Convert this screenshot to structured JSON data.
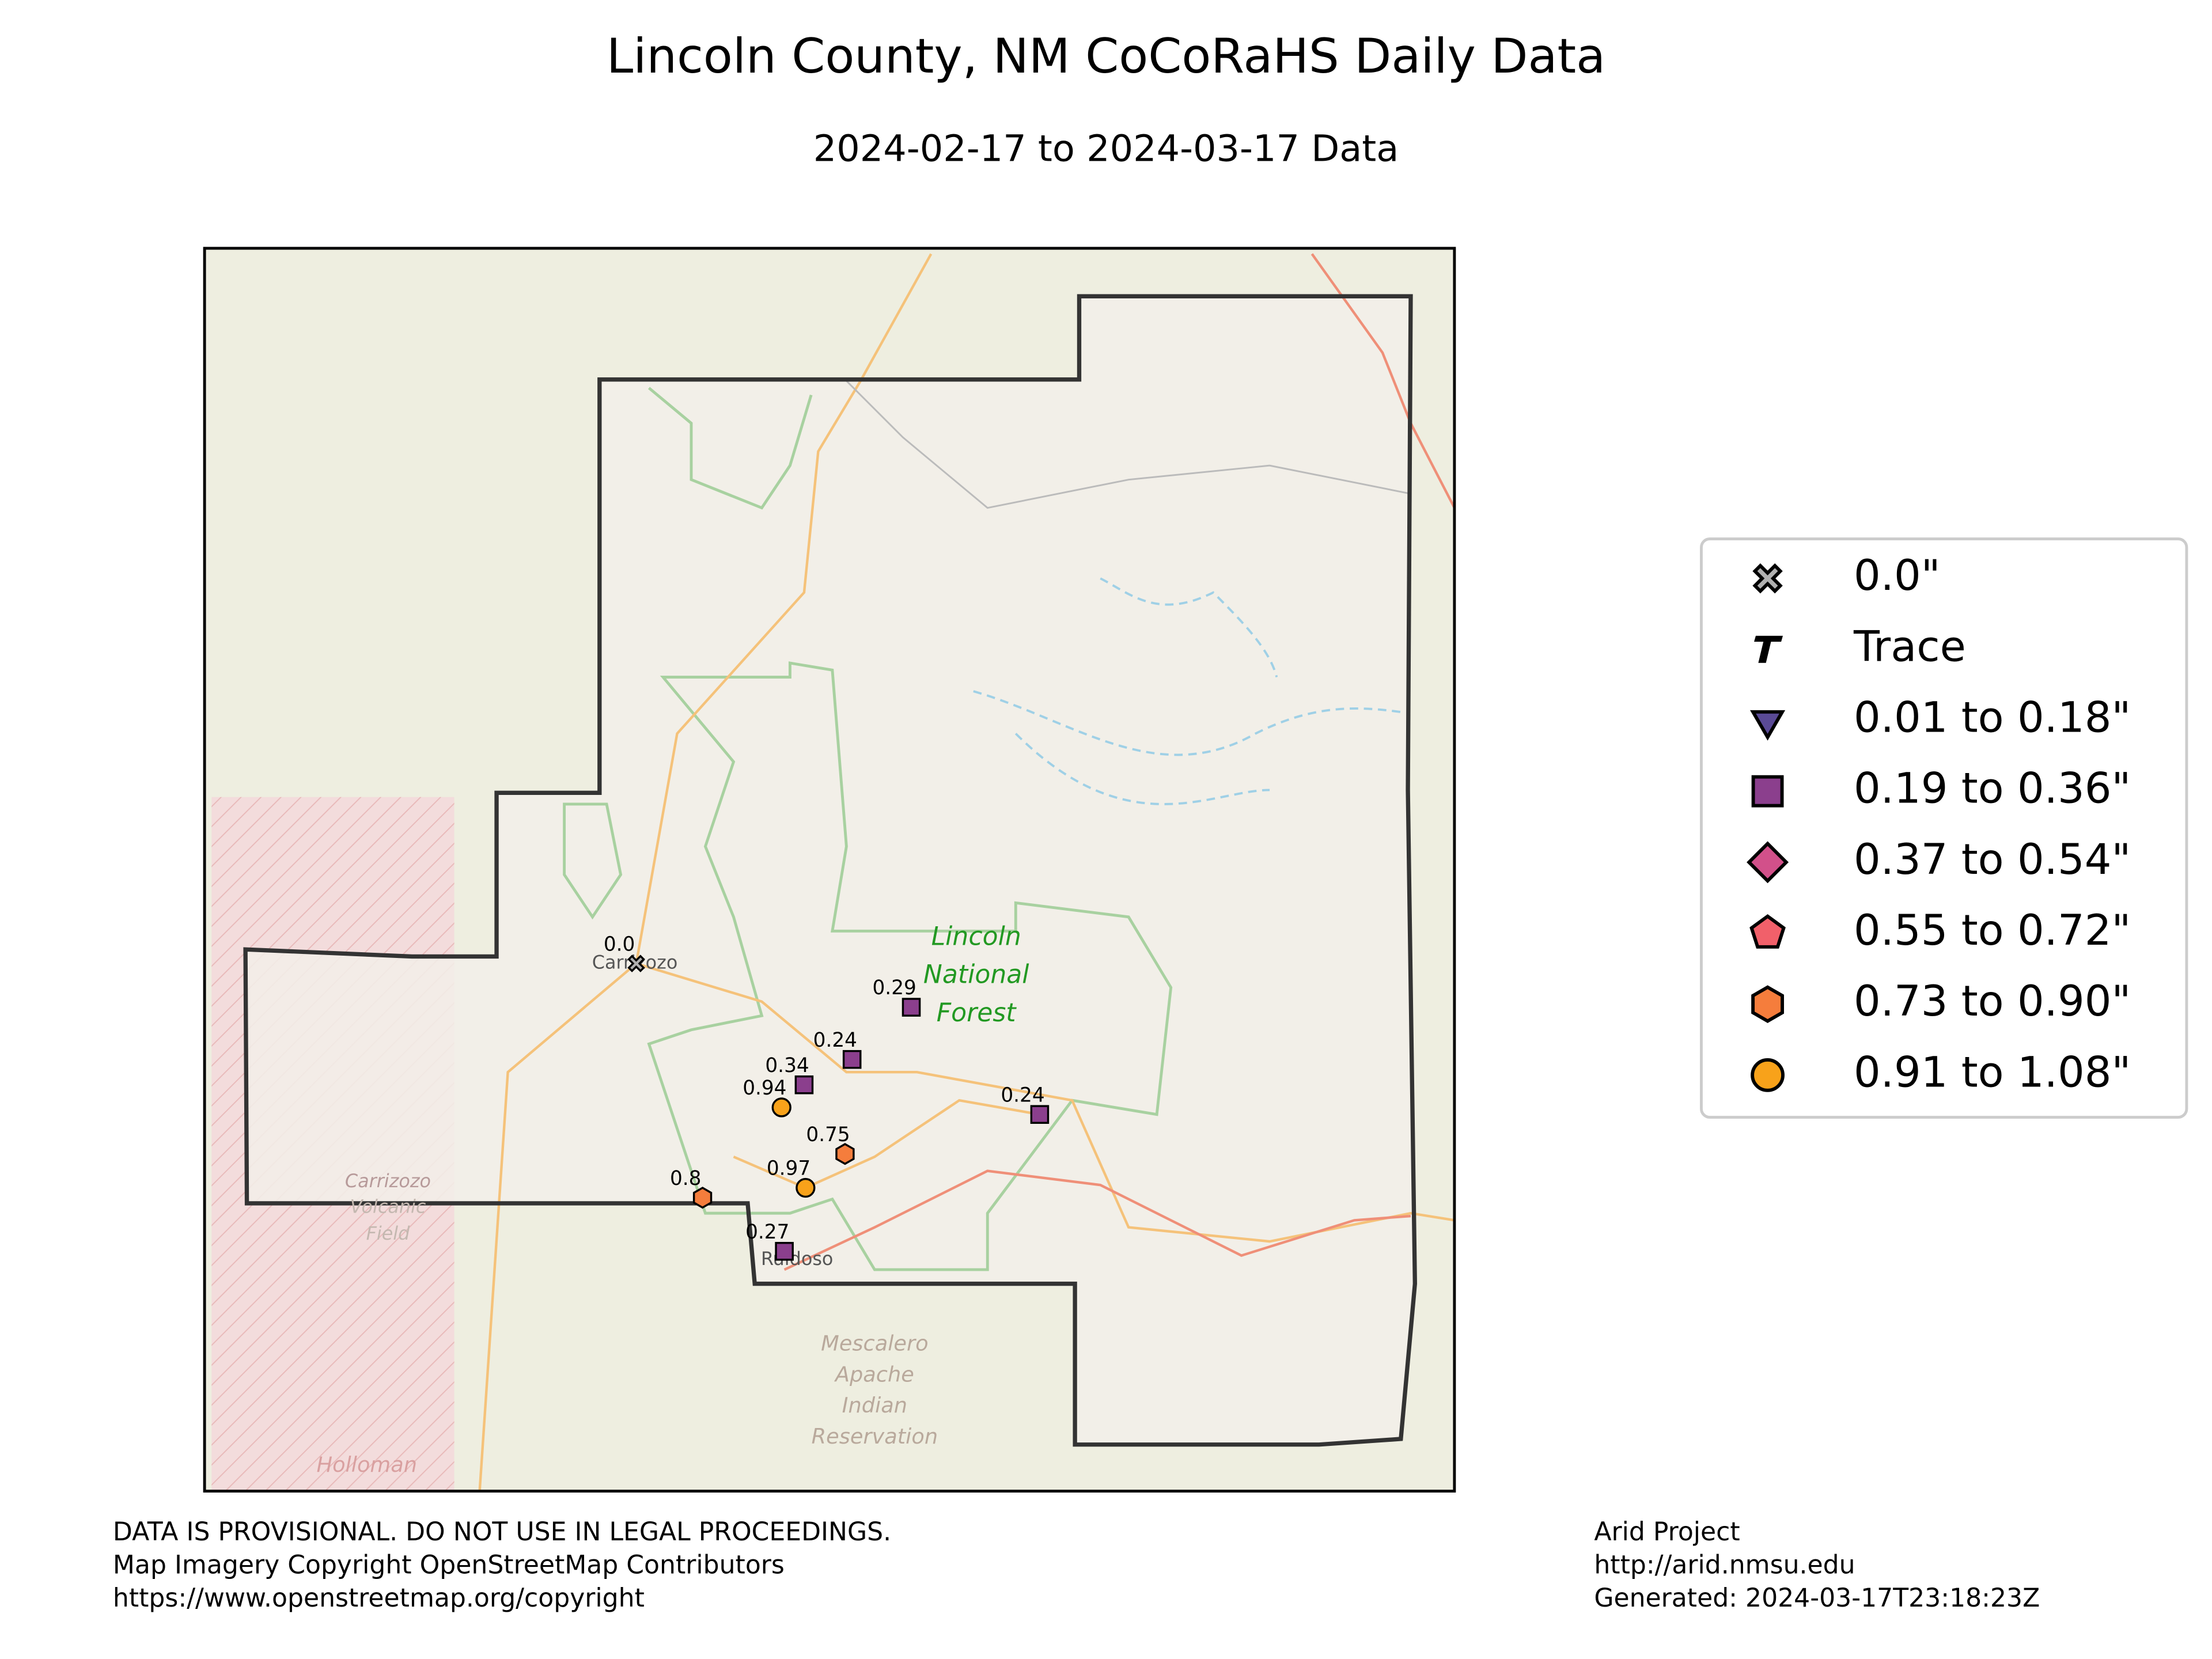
{
  "title": "Lincoln County, NM CoCoRaHS Daily Data",
  "subtitle": "2024-02-17 to 2024-03-17 Data",
  "map": {
    "labels": [
      "Carrizozo",
      "Ruidoso",
      "Lincoln",
      "National",
      "Forest",
      "Mescalero",
      "Apache",
      "Indian",
      "Reservation",
      "Carrizozo",
      "Volcanic",
      "Field",
      "Holloman"
    ]
  },
  "stations": {
    "values": [
      0.0,
      0.29,
      0.24,
      0.34,
      0.94,
      0.24,
      0.75,
      0.97,
      0.8,
      0.27
    ],
    "value_labels": [
      "0.0",
      "0.29",
      "0.24",
      "0.34",
      "0.94",
      "0.24",
      "0.75",
      "0.97",
      "0.8",
      "0.27"
    ]
  },
  "legend": [
    {
      "name": "0.0\"",
      "marker": "x",
      "color": "#b0b0b0",
      "min": 0,
      "max": 0
    },
    {
      "name": "Trace",
      "marker": "trace",
      "color": "#000000"
    },
    {
      "name": "0.01 to 0.18\"",
      "marker": "triangle",
      "color": "#5a4a96",
      "min": 0.01,
      "max": 0.18
    },
    {
      "name": "0.19 to 0.36\"",
      "marker": "square",
      "color": "#8b3f8d",
      "min": 0.19,
      "max": 0.36
    },
    {
      "name": "0.37 to 0.54\"",
      "marker": "diamond",
      "color": "#d2508a",
      "min": 0.37,
      "max": 0.54
    },
    {
      "name": "0.55 to 0.72\"",
      "marker": "pentagon",
      "color": "#f1606a",
      "min": 0.55,
      "max": 0.72
    },
    {
      "name": "0.73 to 0.90\"",
      "marker": "hexagon",
      "color": "#f57d3c",
      "min": 0.73,
      "max": 0.9
    },
    {
      "name": "0.91 to 1.08\"",
      "marker": "circle",
      "color": "#f8a21a",
      "min": 0.91,
      "max": 1.08
    }
  ],
  "footer": {
    "left": [
      "DATA IS PROVISIONAL. DO NOT USE IN LEGAL PROCEEDINGS.",
      "Map Imagery Copyright OpenStreetMap Contributors",
      "https://www.openstreetmap.org/copyright"
    ],
    "right": [
      "Arid Project",
      "http://arid.nmsu.edu",
      "Generated: 2024-03-17T23:18:23Z"
    ]
  }
}
